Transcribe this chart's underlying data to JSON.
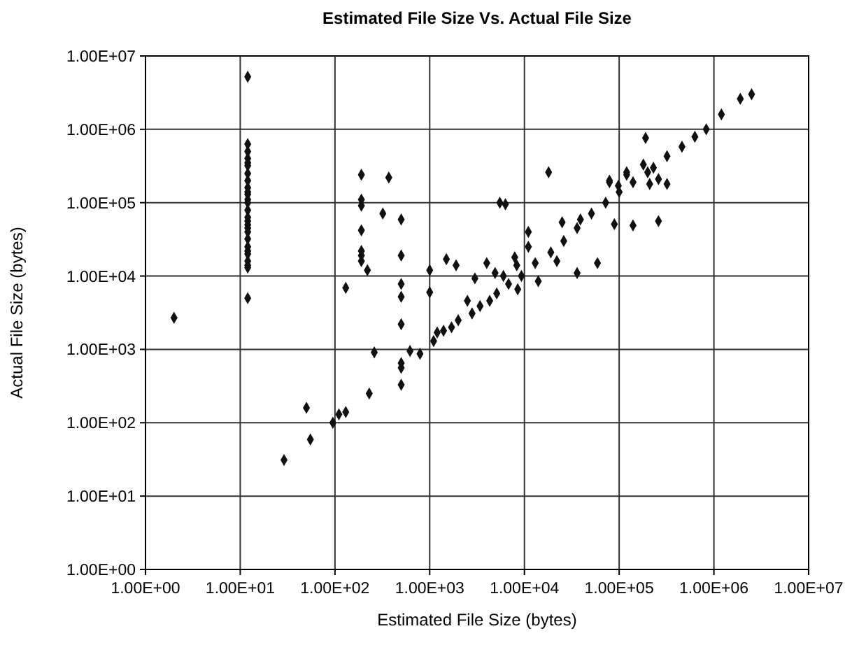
{
  "chart_data": {
    "type": "scatter",
    "title": "Estimated File Size Vs. Actual File Size",
    "xlabel": "Estimated File Size (bytes)",
    "ylabel": "Actual File Size (bytes)",
    "log": "xy",
    "grid": true,
    "marker": "diamond",
    "xlim": [
      1,
      10000000
    ],
    "ylim": [
      1,
      10000000
    ],
    "xticks": [
      {
        "value": 1,
        "label": "1.00E+00"
      },
      {
        "value": 10,
        "label": "1.00E+01"
      },
      {
        "value": 100,
        "label": "1.00E+02"
      },
      {
        "value": 1000,
        "label": "1.00E+03"
      },
      {
        "value": 10000,
        "label": "1.00E+04"
      },
      {
        "value": 100000,
        "label": "1.00E+05"
      },
      {
        "value": 1000000,
        "label": "1.00E+06"
      },
      {
        "value": 10000000,
        "label": "1.00E+07"
      }
    ],
    "yticks": [
      {
        "value": 1,
        "label": "1.00E+00"
      },
      {
        "value": 10,
        "label": "1.00E+01"
      },
      {
        "value": 100,
        "label": "1.00E+02"
      },
      {
        "value": 1000,
        "label": "1.00E+03"
      },
      {
        "value": 10000,
        "label": "1.00E+04"
      },
      {
        "value": 100000,
        "label": "1.00E+05"
      },
      {
        "value": 1000000,
        "label": "1.00E+06"
      },
      {
        "value": 10000000,
        "label": "1.00E+07"
      }
    ],
    "series": [
      {
        "color": "#111111",
        "x": [
          12,
          12,
          12,
          12,
          12,
          12,
          12,
          12,
          12,
          12,
          12,
          12,
          12,
          12,
          12,
          12,
          12,
          12,
          12,
          12,
          12,
          12,
          12,
          12,
          12,
          12,
          12,
          2,
          29,
          50,
          55,
          95,
          110,
          130,
          230,
          260,
          190,
          190,
          190,
          190,
          190,
          190,
          190,
          220,
          320,
          370,
          130,
          500,
          500,
          500,
          500,
          500,
          500,
          500,
          500,
          620,
          790,
          1100,
          1200,
          1400,
          1700,
          2000,
          2800,
          3400,
          4300,
          1000,
          1000,
          1500,
          1900,
          3000,
          2500,
          4000,
          4900,
          5500,
          6300,
          6000,
          5100,
          6800,
          9300,
          13000,
          19000,
          26000,
          36000,
          51000,
          72000,
          100000,
          140000,
          200000,
          230000,
          320000,
          460000,
          630000,
          830000,
          7900,
          8300,
          8500,
          11000,
          11000,
          14000,
          18000,
          22000,
          25000,
          36000,
          39000,
          59000,
          79000,
          89000,
          120000,
          140000,
          190000,
          1200000,
          1900000,
          2500000,
          180000,
          120000,
          79000,
          98000,
          210000,
          260000,
          320000,
          260000
        ],
        "values": [
          5200000,
          5000,
          630000,
          500000,
          400000,
          350000,
          320000,
          250000,
          200000,
          160000,
          140000,
          130000,
          110000,
          100000,
          79000,
          63000,
          56000,
          50000,
          45000,
          40000,
          32000,
          25000,
          22000,
          20000,
          16000,
          14000,
          13000,
          2700,
          31,
          160,
          59,
          100,
          130,
          140,
          250,
          910,
          240000,
          110000,
          91000,
          42000,
          22000,
          19000,
          16000,
          12000,
          71000,
          220000,
          6900,
          59000,
          19000,
          7800,
          5200,
          2200,
          650,
          560,
          330,
          950,
          870,
          1300,
          1700,
          1800,
          2000,
          2500,
          3100,
          3900,
          4600,
          12000,
          6000,
          17000,
          14000,
          9300,
          4600,
          15000,
          11000,
          100000,
          95000,
          10000,
          5800,
          7800,
          10000,
          15000,
          21000,
          30000,
          45000,
          71000,
          100000,
          140000,
          190000,
          260000,
          300000,
          430000,
          580000,
          790000,
          1000000,
          18000,
          14000,
          6600,
          40000,
          25000,
          8500,
          260000,
          16000,
          54000,
          11000,
          59000,
          15000,
          190000,
          51000,
          260000,
          49000,
          760000,
          1600000,
          2600000,
          3000000,
          330000,
          240000,
          200000,
          170000,
          180000,
          210000,
          180000,
          56000
        ]
      }
    ]
  }
}
